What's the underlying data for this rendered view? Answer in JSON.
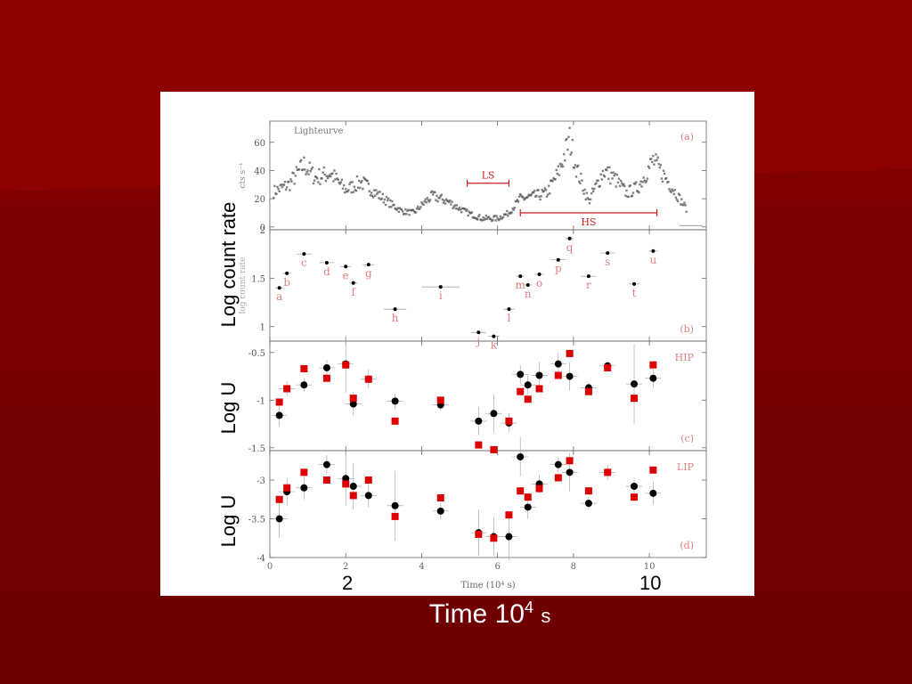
{
  "slide": {
    "overlay_ylabels": [
      "Log count rate",
      "Log U",
      "Log U"
    ],
    "overlay_xticks": [
      "2",
      "10"
    ],
    "xlabel_main": "Time 10",
    "xlabel_exp": "4",
    "xlabel_unit": "s"
  },
  "colors": {
    "background": "#7a0000",
    "panel_text": "#e08080",
    "series_black": "#000000",
    "series_red": "#dd0000",
    "overlay_text_white": "#ffffff"
  },
  "chart_data": [
    {
      "type": "scatter",
      "panel": "a",
      "title": "Lighteurve",
      "panel_tag": "(a)",
      "ylabel": "cts s⁻¹",
      "xlim": [
        0,
        11.5
      ],
      "ylim": [
        -2,
        75
      ],
      "yticks": [
        "0",
        "20",
        "40",
        "60"
      ],
      "ytick_values": [
        0,
        20,
        40,
        60
      ],
      "annotations": [
        {
          "label": "LS",
          "x_start": 5.2,
          "x_end": 6.3,
          "y": 31
        },
        {
          "label": "HS",
          "x_start": 6.6,
          "x_end": 10.2,
          "y": 10
        }
      ],
      "profile": [
        [
          0.1,
          25
        ],
        [
          0.5,
          30
        ],
        [
          0.9,
          44
        ],
        [
          1.2,
          35
        ],
        [
          1.6,
          38
        ],
        [
          2.0,
          26
        ],
        [
          2.4,
          32
        ],
        [
          2.8,
          24
        ],
        [
          3.2,
          16
        ],
        [
          3.5,
          11
        ],
        [
          3.8,
          10
        ],
        [
          4.1,
          18
        ],
        [
          4.3,
          22
        ],
        [
          4.7,
          18
        ],
        [
          5.0,
          13
        ],
        [
          5.3,
          9
        ],
        [
          5.6,
          6
        ],
        [
          6.0,
          6
        ],
        [
          6.3,
          10
        ],
        [
          6.6,
          20
        ],
        [
          7.0,
          22
        ],
        [
          7.3,
          24
        ],
        [
          7.6,
          38
        ],
        [
          7.9,
          62
        ],
        [
          8.1,
          40
        ],
        [
          8.4,
          18
        ],
        [
          8.8,
          40
        ],
        [
          9.1,
          34
        ],
        [
          9.4,
          24
        ],
        [
          9.7,
          28
        ],
        [
          10.1,
          47
        ],
        [
          10.4,
          36
        ],
        [
          10.8,
          20
        ],
        [
          11.0,
          12
        ]
      ]
    },
    {
      "type": "scatter",
      "panel": "b",
      "panel_tag": "(b)",
      "ylabel": "log count rate",
      "xlim": [
        0,
        11.5
      ],
      "ylim": [
        0.85,
        2.0
      ],
      "yticks": [
        "1",
        "1.5",
        "2"
      ],
      "ytick_values": [
        1,
        1.5,
        2
      ],
      "points": [
        {
          "label": "a",
          "x": 0.25,
          "y": 1.4,
          "xerr": 0.12
        },
        {
          "label": "b",
          "x": 0.45,
          "y": 1.55,
          "xerr": 0.12
        },
        {
          "label": "c",
          "x": 0.9,
          "y": 1.75,
          "xerr": 0.2
        },
        {
          "label": "d",
          "x": 1.5,
          "y": 1.66,
          "xerr": 0.2
        },
        {
          "label": "e",
          "x": 2.0,
          "y": 1.62,
          "xerr": 0.15
        },
        {
          "label": "f",
          "x": 2.2,
          "y": 1.45,
          "xerr": 0.1
        },
        {
          "label": "g",
          "x": 2.6,
          "y": 1.64,
          "xerr": 0.15
        },
        {
          "label": "h",
          "x": 3.3,
          "y": 1.18,
          "xerr": 0.3
        },
        {
          "label": "i",
          "x": 4.5,
          "y": 1.41,
          "xerr": 0.5
        },
        {
          "label": "j",
          "x": 5.5,
          "y": 0.94,
          "xerr": 0.2
        },
        {
          "label": "k",
          "x": 5.9,
          "y": 0.9,
          "xerr": 0.15
        },
        {
          "label": "l",
          "x": 6.3,
          "y": 1.18,
          "xerr": 0.15
        },
        {
          "label": "m",
          "x": 6.6,
          "y": 1.52,
          "xerr": 0.1
        },
        {
          "label": "n",
          "x": 6.8,
          "y": 1.43,
          "xerr": 0.1
        },
        {
          "label": "o",
          "x": 7.1,
          "y": 1.54,
          "xerr": 0.12
        },
        {
          "label": "p",
          "x": 7.6,
          "y": 1.69,
          "xerr": 0.2
        },
        {
          "label": "q",
          "x": 7.9,
          "y": 1.91,
          "xerr": 0.1
        },
        {
          "label": "r",
          "x": 8.4,
          "y": 1.52,
          "xerr": 0.2
        },
        {
          "label": "s",
          "x": 8.9,
          "y": 1.76,
          "xerr": 0.2
        },
        {
          "label": "t",
          "x": 9.6,
          "y": 1.44,
          "xerr": 0.15
        },
        {
          "label": "u",
          "x": 10.1,
          "y": 1.78,
          "xerr": 0.12
        }
      ]
    },
    {
      "type": "scatter",
      "panel": "c",
      "panel_tag": "(c)",
      "legend": "HIP",
      "xlim": [
        0,
        11.5
      ],
      "ylim": [
        -1.53,
        -0.38
      ],
      "yticks": [
        "-0.5",
        "-1",
        "-1.5"
      ],
      "ytick_values": [
        -0.5,
        -1,
        -1.5
      ],
      "series": [
        {
          "name": "black",
          "x": [
            0.25,
            0.45,
            0.9,
            1.5,
            2.0,
            2.2,
            2.6,
            3.3,
            4.5,
            5.5,
            5.9,
            6.3,
            6.6,
            6.8,
            7.1,
            7.6,
            7.9,
            8.4,
            8.9,
            9.6,
            10.1
          ],
          "y": [
            -1.16,
            -0.88,
            -0.84,
            -0.66,
            -0.62,
            -1.04,
            -0.78,
            -1.01,
            -1.05,
            -1.22,
            -1.14,
            -1.24,
            -0.73,
            -0.84,
            -0.74,
            -0.62,
            -0.75,
            -0.87,
            -0.64,
            -0.83,
            -0.77
          ],
          "yerr": [
            0.12,
            0.08,
            0.07,
            0.08,
            0.3,
            0.12,
            0.1,
            0.08,
            0.06,
            0.15,
            0.2,
            0.1,
            0.1,
            0.1,
            0.14,
            0.12,
            0.15,
            0.06,
            0.05,
            0.42,
            0.1
          ]
        },
        {
          "name": "red",
          "x": [
            0.25,
            0.45,
            0.9,
            1.5,
            2.0,
            2.2,
            2.6,
            3.3,
            4.5,
            5.5,
            5.9,
            6.3,
            6.6,
            6.8,
            7.1,
            7.6,
            7.9,
            8.4,
            8.9,
            9.6,
            10.1
          ],
          "y": [
            -1.02,
            -0.88,
            -0.67,
            -0.77,
            -0.63,
            -0.98,
            -0.78,
            -1.22,
            -1.0,
            -1.47,
            -1.52,
            -1.22,
            -0.91,
            -0.99,
            -0.88,
            -0.74,
            -0.51,
            -0.91,
            -0.66,
            -0.98,
            -0.63
          ]
        }
      ]
    },
    {
      "type": "scatter",
      "panel": "d",
      "panel_tag": "(d)",
      "legend": "LIP",
      "xlabel": "Time (10⁴ s)",
      "xlim": [
        0,
        11.5
      ],
      "xticks": [
        "0",
        "2",
        "4",
        "6",
        "8",
        "10"
      ],
      "xtick_values": [
        0,
        2,
        4,
        6,
        8,
        10
      ],
      "ylim": [
        -4.0,
        -2.62
      ],
      "yticks": [
        "-3",
        "-3.5",
        "-4"
      ],
      "ytick_values": [
        -3,
        -3.5,
        -4
      ],
      "series": [
        {
          "name": "black",
          "x": [
            0.25,
            0.45,
            0.9,
            1.5,
            2.0,
            2.2,
            2.6,
            3.3,
            4.5,
            5.5,
            5.9,
            6.3,
            6.6,
            6.8,
            7.1,
            7.6,
            7.9,
            8.4,
            8.9,
            9.6,
            10.1
          ],
          "y": [
            -3.5,
            -3.15,
            -3.1,
            -2.8,
            -2.98,
            -3.08,
            -3.2,
            -3.33,
            -3.4,
            -3.68,
            -3.73,
            -3.73,
            -2.7,
            -3.35,
            -3.05,
            -2.8,
            -2.9,
            -3.3,
            -2.9,
            -3.08,
            -3.17
          ],
          "yerr": [
            0.25,
            0.18,
            0.15,
            0.12,
            0.35,
            0.3,
            0.15,
            0.45,
            0.1,
            0.3,
            0.25,
            0.3,
            0.25,
            0.15,
            0.12,
            0.1,
            0.25,
            0.08,
            0.1,
            0.12,
            0.15
          ]
        },
        {
          "name": "red",
          "x": [
            0.25,
            0.45,
            0.9,
            1.5,
            2.0,
            2.2,
            2.6,
            3.3,
            4.5,
            5.5,
            5.9,
            6.3,
            6.6,
            6.8,
            7.1,
            7.6,
            7.9,
            8.4,
            8.9,
            9.6,
            10.1
          ],
          "y": [
            -3.25,
            -3.1,
            -2.9,
            -3.0,
            -3.05,
            -3.2,
            -3.0,
            -3.47,
            -3.23,
            -3.7,
            -3.75,
            -3.45,
            -3.14,
            -3.22,
            -3.11,
            -2.97,
            -2.75,
            -3.14,
            -2.9,
            -3.22,
            -2.87
          ]
        }
      ]
    }
  ]
}
